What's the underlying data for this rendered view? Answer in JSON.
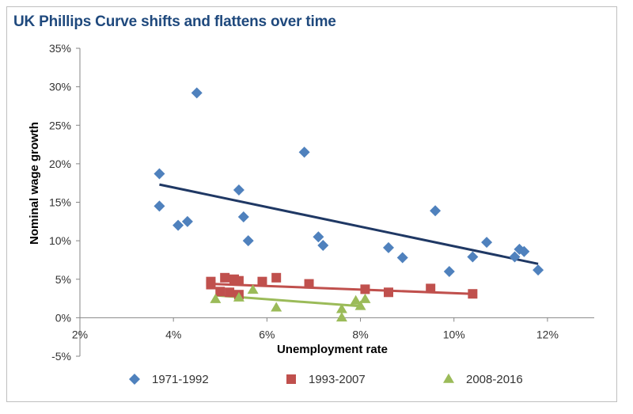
{
  "chart_data": {
    "type": "scatter",
    "title": "UK Phillips Curve shifts and flattens over time",
    "xlabel": "Unemployment rate",
    "ylabel": "Nominal wage growth",
    "xlim": [
      2,
      13
    ],
    "ylim": [
      -5,
      35
    ],
    "xticks": [
      2,
      4,
      6,
      8,
      10,
      12
    ],
    "xtick_labels": [
      "2%",
      "4%",
      "6%",
      "8%",
      "10%",
      "12%"
    ],
    "yticks": [
      -5,
      0,
      5,
      10,
      15,
      20,
      25,
      30,
      35
    ],
    "ytick_labels": [
      "-5%",
      "0%",
      "5%",
      "10%",
      "15%",
      "20%",
      "25%",
      "30%",
      "35%"
    ],
    "legend_position": "bottom",
    "series": [
      {
        "name": "1971-1992",
        "marker": "diamond",
        "color": "#4f81bd",
        "trend_color": "#1f3864",
        "trend": [
          [
            3.7,
            17.3
          ],
          [
            11.8,
            7.0
          ]
        ],
        "points": [
          [
            3.7,
            18.7
          ],
          [
            3.7,
            14.5
          ],
          [
            4.1,
            12.0
          ],
          [
            4.3,
            12.5
          ],
          [
            4.5,
            29.2
          ],
          [
            5.4,
            16.6
          ],
          [
            5.5,
            13.1
          ],
          [
            5.6,
            10.0
          ],
          [
            6.8,
            21.5
          ],
          [
            7.1,
            10.5
          ],
          [
            7.2,
            9.4
          ],
          [
            8.6,
            9.1
          ],
          [
            8.9,
            7.8
          ],
          [
            9.6,
            13.9
          ],
          [
            9.9,
            6.0
          ],
          [
            10.4,
            7.9
          ],
          [
            10.7,
            9.8
          ],
          [
            11.3,
            7.9
          ],
          [
            11.4,
            8.9
          ],
          [
            11.5,
            8.6
          ],
          [
            11.8,
            6.2
          ]
        ]
      },
      {
        "name": "1993-2007",
        "marker": "square",
        "color": "#c0504d",
        "trend_color": "#c0504d",
        "trend": [
          [
            4.8,
            4.4
          ],
          [
            10.4,
            3.1
          ]
        ],
        "points": [
          [
            4.8,
            4.7
          ],
          [
            4.8,
            4.3
          ],
          [
            5.0,
            3.4
          ],
          [
            5.1,
            5.2
          ],
          [
            5.2,
            3.3
          ],
          [
            5.3,
            5.0
          ],
          [
            5.4,
            4.8
          ],
          [
            5.4,
            3.0
          ],
          [
            5.9,
            4.7
          ],
          [
            6.2,
            5.2
          ],
          [
            6.9,
            4.4
          ],
          [
            8.1,
            3.7
          ],
          [
            8.6,
            3.3
          ],
          [
            9.5,
            3.8
          ],
          [
            10.4,
            3.1
          ]
        ]
      },
      {
        "name": "2008-2016",
        "marker": "triangle",
        "color": "#9bbb59",
        "trend_color": "#9bbb59",
        "trend": [
          [
            4.9,
            2.9
          ],
          [
            8.0,
            1.5
          ]
        ],
        "points": [
          [
            4.9,
            2.4
          ],
          [
            5.4,
            2.6
          ],
          [
            5.7,
            3.6
          ],
          [
            6.2,
            1.3
          ],
          [
            7.6,
            1.1
          ],
          [
            7.6,
            0.0
          ],
          [
            7.9,
            2.2
          ],
          [
            8.0,
            1.5
          ],
          [
            8.1,
            2.4
          ]
        ]
      }
    ]
  }
}
